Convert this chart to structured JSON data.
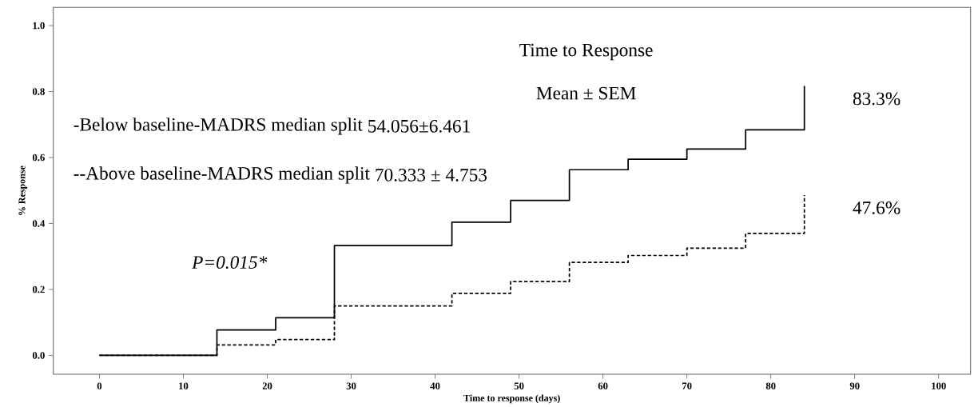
{
  "chart_data": {
    "type": "step",
    "xlabel": "Time to response (days)",
    "ylabel": "% Response",
    "xlim": [
      -5.5,
      103.8
    ],
    "ylim": [
      -0.057,
      1.055
    ],
    "xticks": [
      0,
      10,
      20,
      30,
      40,
      50,
      60,
      70,
      80,
      90,
      100
    ],
    "yticks": [
      {
        "value": 0,
        "label": "0.0"
      },
      {
        "value": 0.2,
        "label": "0.2"
      },
      {
        "value": 0.4,
        "label": "0.4"
      },
      {
        "value": 0.6,
        "label": "0.6"
      },
      {
        "value": 0.8,
        "label": "0.8"
      },
      {
        "value": 1,
        "label": "1.0"
      }
    ],
    "grid": false,
    "marker": "none",
    "series": [
      {
        "color": "#000000",
        "line_style": "solid",
        "x": [
          0,
          14,
          21,
          28,
          42,
          49,
          56,
          63,
          70,
          77,
          84
        ],
        "values": [
          0,
          0.077,
          0.114,
          0.333,
          0.404,
          0.47,
          0.563,
          0.595,
          0.626,
          0.684,
          0.817
        ]
      },
      {
        "color": "#000000",
        "line_style": "dashed",
        "x": [
          0,
          14,
          21,
          28,
          42,
          49,
          56,
          63,
          70,
          77,
          84
        ],
        "values": [
          0,
          0.032,
          0.048,
          0.15,
          0.188,
          0.224,
          0.282,
          0.303,
          0.325,
          0.37,
          0.486
        ]
      }
    ],
    "annotations": [
      "Time to Response",
      "Mean ± SEM",
      "-Below baseline-MADRS median split",
      "54.056±6.461",
      "--Above baseline-MADRS median split",
      "70.333 ± 4.753",
      "P=0.015*",
      {
        "text": "83.3%",
        "x": 84,
        "y": 0.817
      },
      {
        "text": "47.6%",
        "x": 84,
        "y": 0.486
      }
    ]
  }
}
